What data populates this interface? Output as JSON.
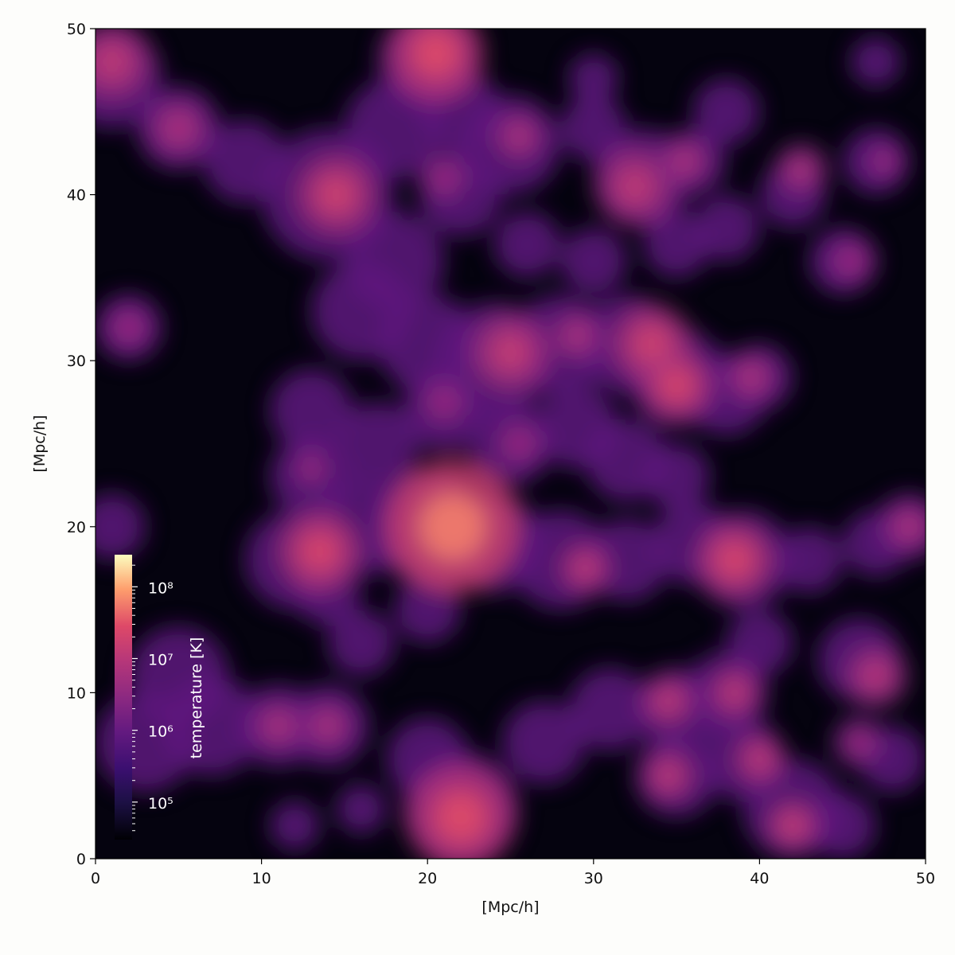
{
  "chart_data": {
    "type": "heatmap",
    "xlabel": "[Mpc/h]",
    "ylabel": "[Mpc/h]",
    "xlim": [
      0,
      50
    ],
    "ylim": [
      0,
      50
    ],
    "xticks": [
      0,
      10,
      20,
      30,
      40,
      50
    ],
    "yticks": [
      0,
      10,
      20,
      30,
      40,
      50
    ],
    "colormap": "magma",
    "colorbar": {
      "label": "temperature [K]",
      "scale": "log",
      "lim": [
        30000,
        280000000
      ],
      "ticks": [
        {
          "value": 100000,
          "label": "10⁵"
        },
        {
          "value": 1000000,
          "label": "10⁶"
        },
        {
          "value": 10000000,
          "label": "10⁷"
        },
        {
          "value": 100000000,
          "label": "10⁸"
        }
      ]
    }
  }
}
